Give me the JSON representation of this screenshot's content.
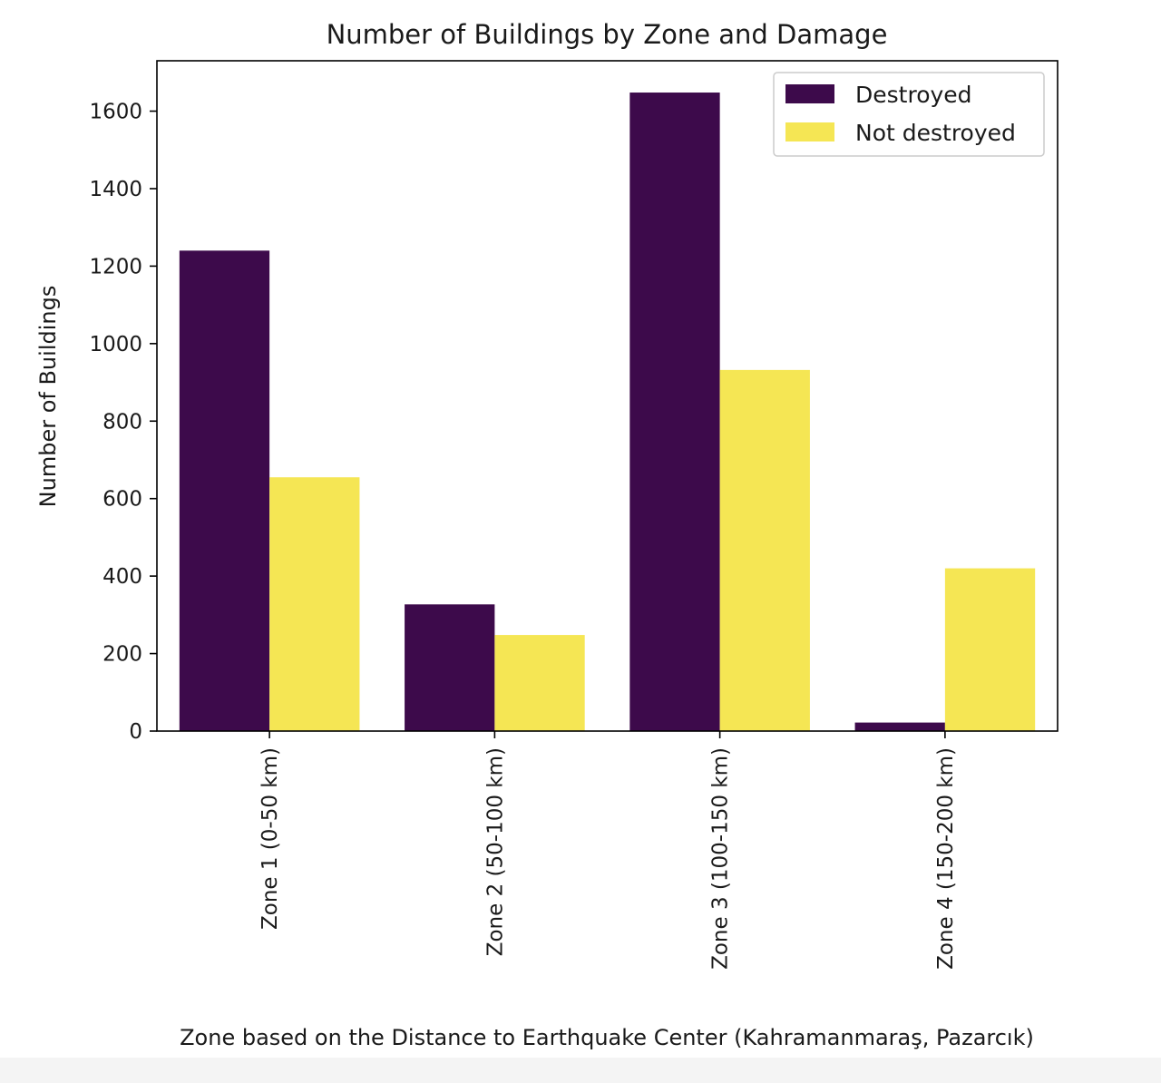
{
  "chart_data": {
    "type": "bar",
    "title": "Number of Buildings by Zone and Damage",
    "xlabel": "Zone based on the Distance to Earthquake Center (Kahramanmaraş, Pazarcık)",
    "ylabel": "Number of Buildings",
    "categories": [
      "Zone 1 (0-50 km)",
      "Zone 2 (50-100 km)",
      "Zone 3 (100-150 km)",
      "Zone 4 (150-200 km)"
    ],
    "series": [
      {
        "name": "Destroyed",
        "color": "#3d0a4b",
        "values": [
          1240,
          327,
          1648,
          22
        ]
      },
      {
        "name": "Not destroyed",
        "color": "#f5e654",
        "values": [
          655,
          248,
          932,
          420
        ]
      }
    ],
    "yticks": [
      0,
      200,
      400,
      600,
      800,
      1000,
      1200,
      1400,
      1600
    ],
    "ylim": [
      0,
      1730
    ],
    "grid": false,
    "legend_position": "upper right"
  }
}
